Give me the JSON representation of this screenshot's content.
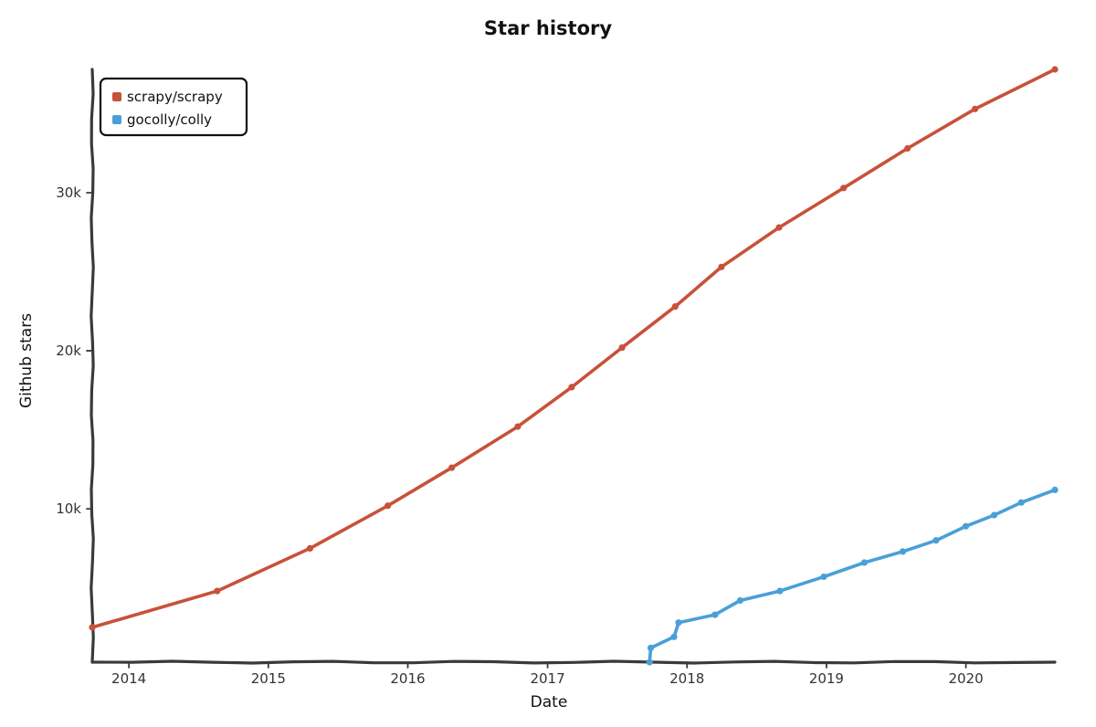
{
  "chart_data": {
    "type": "line",
    "title": "Star history",
    "xlabel": "Date",
    "ylabel": "Github stars",
    "x_ticks": [
      "2014",
      "2015",
      "2016",
      "2017",
      "2018",
      "2019",
      "2020"
    ],
    "y_ticks": [
      {
        "value": 10000,
        "label": "10k"
      },
      {
        "value": 20000,
        "label": "20k"
      },
      {
        "value": 30000,
        "label": "30k"
      }
    ],
    "xlim": [
      "2013-09-27",
      "2020-08-21"
    ],
    "ylim": [
      300,
      37800
    ],
    "grid": false,
    "legend_position": "top-left",
    "series": [
      {
        "name": "scrapy/scrapy",
        "color": "#c8513a",
        "points": [
          {
            "x": "2013-09-27",
            "y": 2500
          },
          {
            "x": "2014-08-20",
            "y": 4800
          },
          {
            "x": "2015-04-20",
            "y": 7500
          },
          {
            "x": "2015-11-10",
            "y": 10200
          },
          {
            "x": "2016-04-25",
            "y": 12600
          },
          {
            "x": "2016-10-15",
            "y": 15200
          },
          {
            "x": "2017-03-05",
            "y": 17700
          },
          {
            "x": "2017-07-15",
            "y": 20200
          },
          {
            "x": "2017-12-01",
            "y": 22800
          },
          {
            "x": "2018-04-01",
            "y": 25300
          },
          {
            "x": "2018-08-30",
            "y": 27800
          },
          {
            "x": "2019-02-15",
            "y": 30300
          },
          {
            "x": "2019-08-01",
            "y": 32800
          },
          {
            "x": "2020-01-25",
            "y": 35300
          },
          {
            "x": "2020-08-21",
            "y": 37800
          }
        ]
      },
      {
        "name": "gocolly/colly",
        "color": "#4a9fd8",
        "points": [
          {
            "x": "2017-09-25",
            "y": 300
          },
          {
            "x": "2017-09-28",
            "y": 1200
          },
          {
            "x": "2017-11-28",
            "y": 1900
          },
          {
            "x": "2017-12-10",
            "y": 2800
          },
          {
            "x": "2018-03-15",
            "y": 3300
          },
          {
            "x": "2018-05-20",
            "y": 4200
          },
          {
            "x": "2018-09-01",
            "y": 4800
          },
          {
            "x": "2018-12-25",
            "y": 5700
          },
          {
            "x": "2019-04-10",
            "y": 6600
          },
          {
            "x": "2019-07-20",
            "y": 7300
          },
          {
            "x": "2019-10-15",
            "y": 8000
          },
          {
            "x": "2020-01-01",
            "y": 8900
          },
          {
            "x": "2020-03-15",
            "y": 9600
          },
          {
            "x": "2020-05-25",
            "y": 10400
          },
          {
            "x": "2020-08-21",
            "y": 11200
          }
        ]
      }
    ]
  }
}
